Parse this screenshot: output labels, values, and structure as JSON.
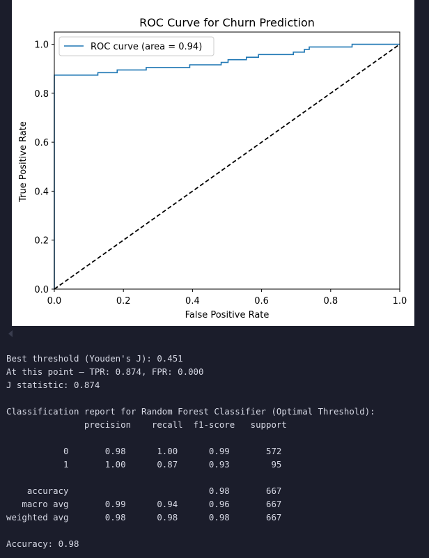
{
  "chart_data": {
    "type": "line",
    "title": "ROC Curve for Churn Prediction",
    "xlabel": "False Positive Rate",
    "ylabel": "True Positive Rate",
    "xlim": [
      0.0,
      1.0
    ],
    "ylim": [
      0.0,
      1.05
    ],
    "xticks": [
      "0.0",
      "0.2",
      "0.4",
      "0.6",
      "0.8",
      "1.0"
    ],
    "yticks": [
      "0.0",
      "0.2",
      "0.4",
      "0.6",
      "0.8",
      "1.0"
    ],
    "legend": "top-left",
    "grid": false,
    "series": [
      {
        "name": "ROC curve (area = 0.94)",
        "color": "#1f77b4",
        "style": "solid",
        "x": [
          0.0,
          0.0,
          0.126,
          0.126,
          0.182,
          0.182,
          0.266,
          0.266,
          0.392,
          0.392,
          0.483,
          0.483,
          0.503,
          0.503,
          0.556,
          0.556,
          0.591,
          0.591,
          0.692,
          0.692,
          0.724,
          0.724,
          0.738,
          0.738,
          0.862,
          0.862,
          1.0,
          1.0
        ],
        "y": [
          0.0,
          0.874,
          0.874,
          0.884,
          0.884,
          0.895,
          0.895,
          0.905,
          0.905,
          0.916,
          0.916,
          0.926,
          0.926,
          0.937,
          0.937,
          0.947,
          0.947,
          0.958,
          0.958,
          0.968,
          0.968,
          0.979,
          0.979,
          0.989,
          0.989,
          1.0,
          1.0,
          1.0
        ]
      },
      {
        "name": "",
        "color": "#000000",
        "style": "dashed",
        "x": [
          0.0,
          1.0
        ],
        "y": [
          0.0,
          1.0
        ]
      }
    ]
  },
  "console": {
    "lines": [
      "Best threshold (Youden's J): 0.451",
      "At this point — TPR: 0.874, FPR: 0.000",
      "J statistic: 0.874",
      "",
      "Classification report for Random Forest Classifier (Optimal Threshold):",
      "               precision    recall  f1-score   support",
      "",
      "           0       0.98      1.00      0.99       572",
      "           1       1.00      0.87      0.93        95",
      "",
      "    accuracy                           0.98       667",
      "   macro avg       0.99      0.94      0.96       667",
      "weighted avg       0.98      0.98      0.98       667",
      "",
      "Accuracy: 0.98"
    ]
  }
}
